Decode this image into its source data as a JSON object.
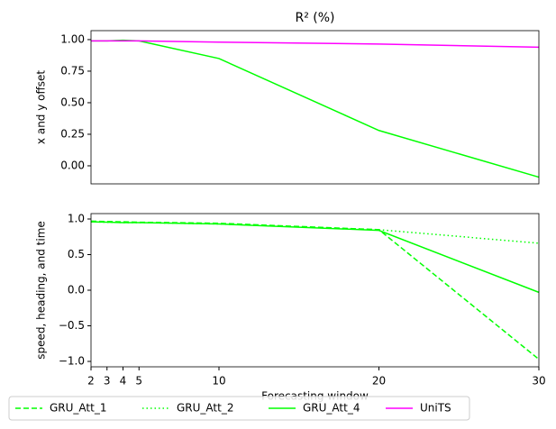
{
  "chart_data": [
    {
      "type": "line",
      "title": "R² (%)",
      "y_label": "x and y offset",
      "x": [
        2,
        3,
        4,
        5,
        10,
        20,
        30
      ],
      "xlim": [
        2,
        30
      ],
      "ylim": [
        -0.143,
        1.071
      ],
      "yticks": [
        {
          "value": 0,
          "label": "0.00"
        },
        {
          "value": 0.25,
          "label": "0.25"
        },
        {
          "value": 0.5,
          "label": "0.50"
        },
        {
          "value": 0.75,
          "label": "0.75"
        },
        {
          "value": 1,
          "label": "1.00"
        }
      ],
      "series": [
        {
          "name": "GRU_Att_4",
          "color": "#00ff00",
          "dash": "solid",
          "values": [
            0.99,
            0.99,
            0.995,
            0.99,
            0.85,
            0.28,
            -0.09
          ]
        },
        {
          "name": "UniTS",
          "color": "#ff00ff",
          "dash": "solid",
          "values": [
            0.99,
            0.99,
            0.99,
            0.99,
            0.98,
            0.965,
            0.94
          ]
        }
      ]
    },
    {
      "type": "line",
      "y_label": "speed, heading, and time",
      "x_label": "Forecasting window",
      "x": [
        2,
        3,
        4,
        5,
        10,
        20,
        30
      ],
      "xlim": [
        2,
        30
      ],
      "xticks": [
        2,
        3,
        4,
        5,
        10,
        20,
        30
      ],
      "ylim": [
        -1.076,
        1.076
      ],
      "yticks": [
        {
          "value": -1,
          "label": "−1.0"
        },
        {
          "value": -0.5,
          "label": "−0.5"
        },
        {
          "value": 0,
          "label": "0.0"
        },
        {
          "value": 0.5,
          "label": "0.5"
        },
        {
          "value": 1,
          "label": "1.0"
        }
      ],
      "legend": "lower center",
      "series": [
        {
          "name": "GRU_Att_1",
          "color": "#00ff00",
          "dash": "dashed",
          "values": [
            0.97,
            0.965,
            0.96,
            0.955,
            0.94,
            0.85,
            -0.97
          ]
        },
        {
          "name": "GRU_Att_2",
          "color": "#00ff00",
          "dash": "dotted",
          "values": [
            0.96,
            0.955,
            0.95,
            0.95,
            0.93,
            0.85,
            0.66
          ]
        },
        {
          "name": "GRU_Att_4",
          "color": "#00ff00",
          "dash": "solid",
          "values": [
            0.96,
            0.955,
            0.95,
            0.95,
            0.93,
            0.84,
            -0.03
          ]
        }
      ]
    }
  ]
}
